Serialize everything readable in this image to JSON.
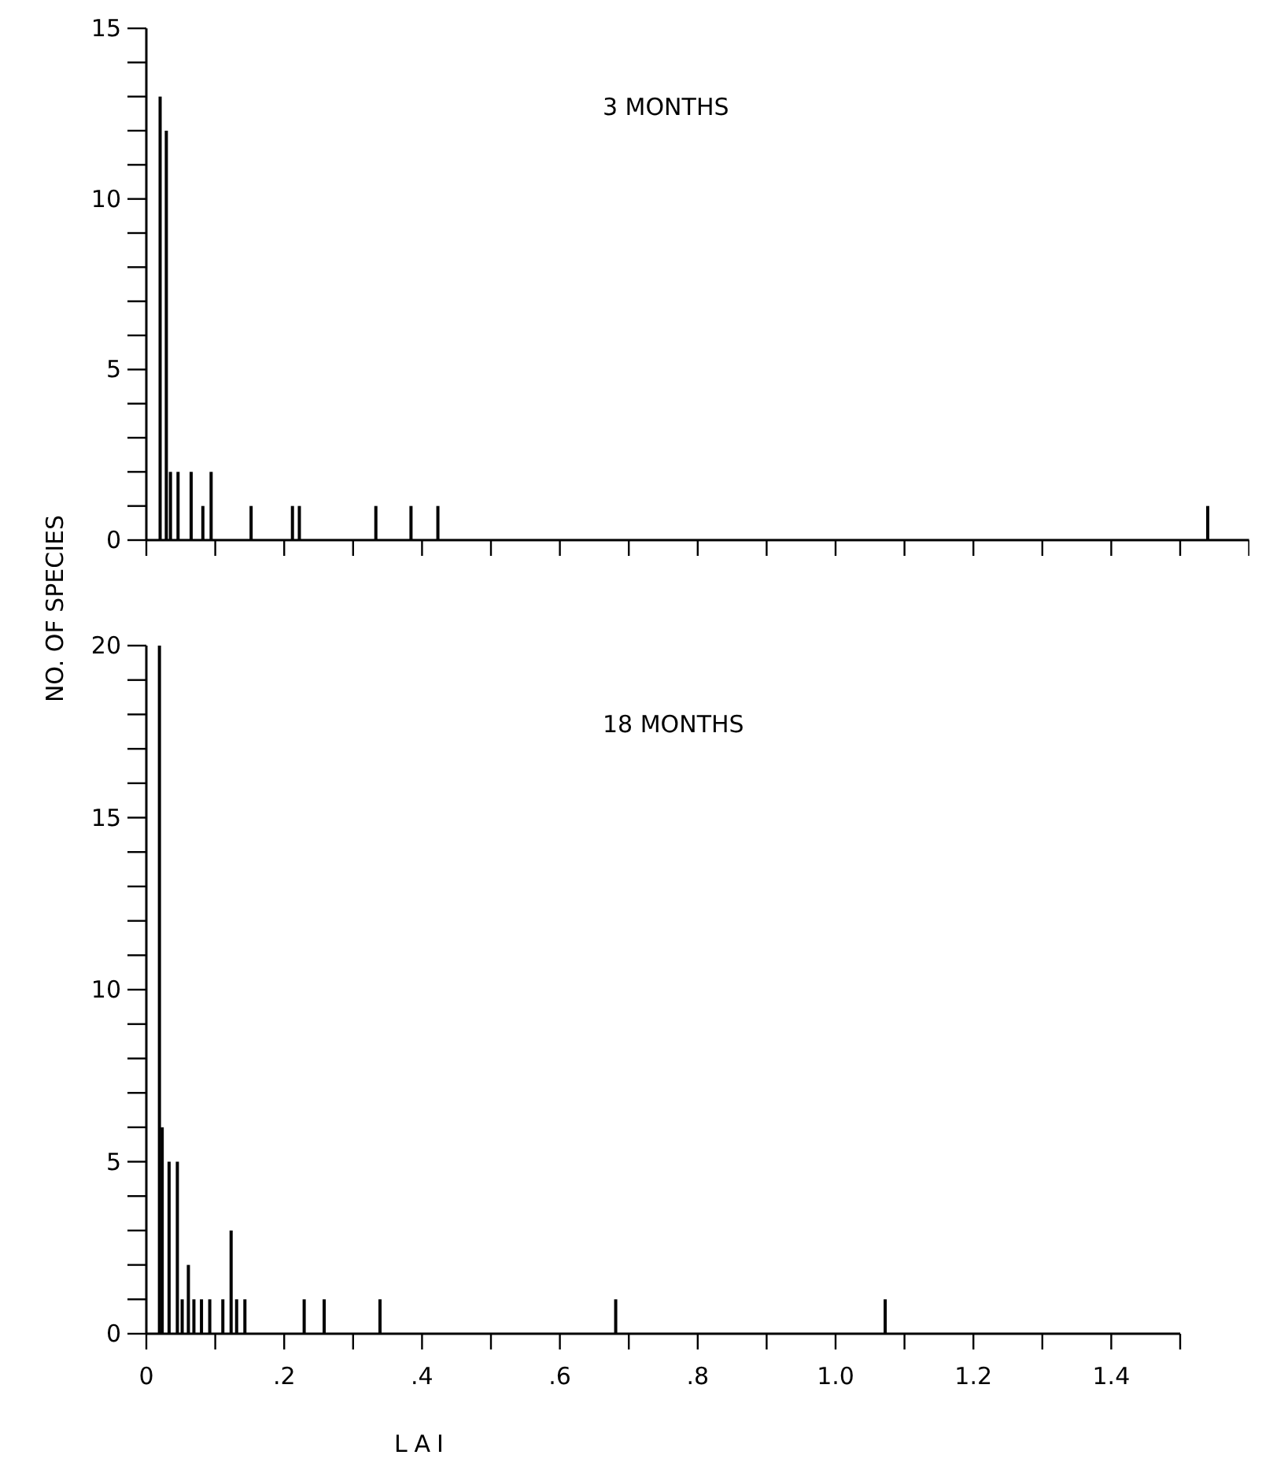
{
  "chart_data": [
    {
      "type": "bar",
      "title": "3 MONTHS",
      "ylabel": "NO. OF SPECIES",
      "color": "#000000",
      "tick_labels": "y",
      "x": [
        0.02,
        0.029,
        0.035,
        0.046,
        0.065,
        0.082,
        0.094,
        0.152,
        0.212,
        0.222,
        0.333,
        0.384,
        0.423,
        1.54
      ],
      "values": [
        13,
        12,
        2,
        2,
        2,
        1,
        2,
        1,
        1,
        1,
        1,
        1,
        1,
        1
      ],
      "xlim": [
        0,
        1.6
      ],
      "xticks": [
        0,
        0.1,
        0.2,
        0.3,
        0.4,
        0.5,
        0.6,
        0.7,
        0.8,
        0.9,
        1.0,
        1.1,
        1.2,
        1.3,
        1.4,
        1.5,
        1.6
      ],
      "ylim": [
        0,
        15
      ],
      "yticks": [
        0,
        {
          "value": 1,
          "label": null
        },
        {
          "value": 2,
          "label": null
        },
        {
          "value": 3,
          "label": null
        },
        {
          "value": 4,
          "label": null
        },
        5,
        {
          "value": 6,
          "label": null
        },
        {
          "value": 7,
          "label": null
        },
        {
          "value": 8,
          "label": null
        },
        {
          "value": 9,
          "label": null
        },
        10,
        {
          "value": 11,
          "label": null
        },
        {
          "value": 12,
          "label": null
        },
        {
          "value": 13,
          "label": null
        },
        {
          "value": 14,
          "label": null
        },
        15
      ]
    },
    {
      "type": "bar",
      "title": "18 MONTHS",
      "xlabel": "LAI",
      "color": "#000000",
      "x": [
        0.019,
        0.023,
        0.033,
        0.045,
        0.052,
        0.061,
        0.069,
        0.08,
        0.092,
        0.111,
        0.123,
        0.131,
        0.143,
        0.229,
        0.258,
        0.339,
        0.681,
        1.072
      ],
      "values": [
        20,
        6,
        5,
        5,
        1,
        2,
        1,
        1,
        1,
        1,
        3,
        1,
        1,
        1,
        1,
        1,
        1,
        1
      ],
      "xlim": [
        0,
        1.5
      ],
      "xticks": [
        0,
        {
          "value": 0.1,
          "label": null
        },
        {
          "value": 0.2,
          "label": ".2"
        },
        {
          "value": 0.3,
          "label": null
        },
        {
          "value": 0.4,
          "label": ".4"
        },
        {
          "value": 0.5,
          "label": null
        },
        {
          "value": 0.6,
          "label": ".6"
        },
        {
          "value": 0.7,
          "label": null
        },
        {
          "value": 0.8,
          "label": ".8"
        },
        {
          "value": 0.9,
          "label": null
        },
        {
          "value": 1.0,
          "label": "1.0"
        },
        {
          "value": 1.1,
          "label": null
        },
        {
          "value": 1.2,
          "label": "1.2"
        },
        {
          "value": 1.3,
          "label": null
        },
        {
          "value": 1.4,
          "label": "1.4"
        },
        {
          "value": 1.5,
          "label": null
        }
      ],
      "ylim": [
        0,
        20
      ],
      "yticks": [
        0,
        {
          "value": 1,
          "label": null
        },
        {
          "value": 2,
          "label": null
        },
        {
          "value": 3,
          "label": null
        },
        {
          "value": 4,
          "label": null
        },
        5,
        {
          "value": 6,
          "label": null
        },
        {
          "value": 7,
          "label": null
        },
        {
          "value": 8,
          "label": null
        },
        {
          "value": 9,
          "label": null
        },
        10,
        {
          "value": 11,
          "label": null
        },
        {
          "value": 12,
          "label": null
        },
        {
          "value": 13,
          "label": null
        },
        {
          "value": 14,
          "label": null
        },
        15,
        {
          "value": 16,
          "label": null
        },
        {
          "value": 17,
          "label": null
        },
        {
          "value": 18,
          "label": null
        },
        {
          "value": 19,
          "label": null
        },
        20
      ]
    }
  ]
}
